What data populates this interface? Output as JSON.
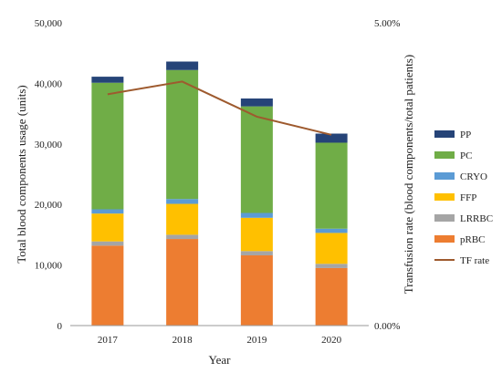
{
  "chart_data": {
    "type": "bar",
    "stacked": true,
    "categories": [
      "2017",
      "2018",
      "2019",
      "2020"
    ],
    "xlabel": "Year",
    "ylabel": "Total blood components usage (units)",
    "ylim": [
      0,
      50000
    ],
    "yticks": [
      "0",
      "10,000",
      "20,000",
      "30,000",
      "40,000",
      "50,000"
    ],
    "y2label": "Transfusion rate (blood components/total patients)",
    "y2lim": [
      0,
      5
    ],
    "y2ticks": [
      "0.00%",
      "5.00%"
    ],
    "grid": false,
    "legend_position": "right",
    "series": [
      {
        "name": "pRBC",
        "color": "#ED7D31",
        "values": [
          13200,
          14300,
          11600,
          9500
        ]
      },
      {
        "name": "LRRBC",
        "color": "#A5A5A5",
        "values": [
          700,
          700,
          700,
          700
        ]
      },
      {
        "name": "FFP",
        "color": "#FFC000",
        "values": [
          4600,
          5100,
          5500,
          5100
        ]
      },
      {
        "name": "CRYO",
        "color": "#5B9BD5",
        "values": [
          700,
          800,
          800,
          700
        ]
      },
      {
        "name": "PC",
        "color": "#70AD47",
        "values": [
          20900,
          21300,
          17600,
          14200
        ]
      },
      {
        "name": "PP",
        "color": "#264478",
        "values": [
          1000,
          1400,
          1300,
          1500
        ]
      }
    ],
    "line_series": {
      "name": "TF rate",
      "color": "#9E5A2E",
      "axis": "secondary",
      "values": [
        3.82,
        4.03,
        3.45,
        3.15
      ]
    },
    "legend_order": [
      "PP",
      "PC",
      "CRYO",
      "FFP",
      "LRRBC",
      "pRBC",
      "TF rate"
    ]
  }
}
